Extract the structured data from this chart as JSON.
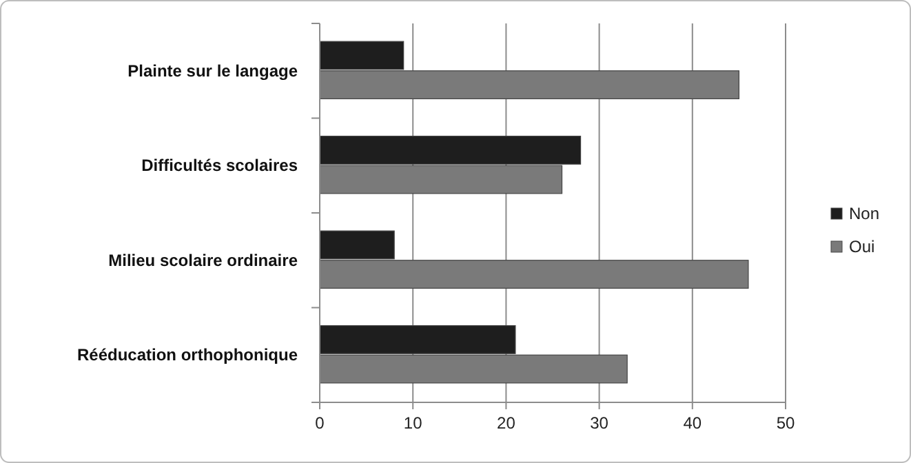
{
  "chart_data": {
    "type": "bar",
    "orientation": "horizontal",
    "categories": [
      "Plainte sur le langage",
      "Difficultés scolaires",
      "Milieu scolaire ordinaire",
      "Rééducation orthophonique"
    ],
    "series": [
      {
        "name": "Non",
        "color": "#1e1e1e",
        "values": [
          9,
          28,
          8,
          21
        ]
      },
      {
        "name": "Oui",
        "color": "#7a7a7a",
        "values": [
          45,
          26,
          46,
          33
        ]
      }
    ],
    "xlim": [
      0,
      50
    ],
    "xticks": [
      0,
      10,
      20,
      30,
      40,
      50
    ],
    "grid": "x",
    "legend": "right"
  }
}
